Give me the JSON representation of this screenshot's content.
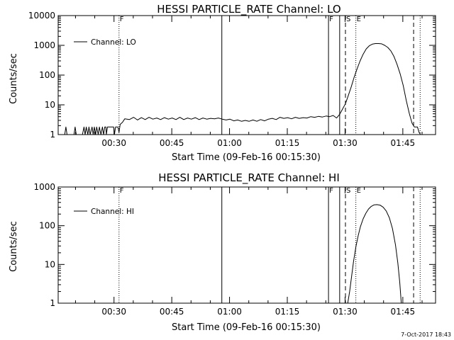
{
  "footer": {
    "timestamp": "7-Oct-2017 18:43"
  },
  "chart_data": [
    {
      "type": "line",
      "title": "HESSI PARTICLE_RATE Channel: LO",
      "xlabel": "Start Time (09-Feb-16 00:15:30)",
      "ylabel": "Counts/sec",
      "y_scale": "log",
      "xlim": [
        "00:15:30",
        "01:53:30"
      ],
      "ylim": [
        1,
        10000
      ],
      "x_ticks": [
        "00:30",
        "00:45",
        "01:00",
        "01:15",
        "01:30",
        "01:45"
      ],
      "y_ticks": [
        "1",
        "10",
        "100",
        "1000",
        "10000"
      ],
      "legend": {
        "placement": "top-left",
        "entries": [
          "Channel: LO"
        ]
      },
      "markers": [
        {
          "label": "F",
          "time": "00:31:18",
          "style": "dotted"
        },
        {
          "label": "",
          "time": "00:58:00",
          "style": "solid"
        },
        {
          "label": "F",
          "time": "01:25:42",
          "style": "solid"
        },
        {
          "label": "",
          "time": "01:28:36",
          "style": "solid"
        },
        {
          "label": "S",
          "time": "01:30:06",
          "style": "dashed"
        },
        {
          "label": "E",
          "time": "01:32:48",
          "style": "dotted"
        },
        {
          "label": "",
          "time": "01:47:48",
          "style": "dashed"
        },
        {
          "label": "",
          "time": "01:49:30",
          "style": "dotted"
        }
      ],
      "series": [
        {
          "name": "Channel: LO",
          "points": [
            [
              "00:17:12",
              1
            ],
            [
              "00:17:30",
              1.8
            ],
            [
              "00:17:48",
              1
            ],
            [
              "00:19:36",
              1
            ],
            [
              "00:19:54",
              1.8
            ],
            [
              "00:20:12",
              1
            ],
            [
              "00:21:48",
              1
            ],
            [
              "00:22:12",
              1.8
            ],
            [
              "00:22:30",
              1
            ],
            [
              "00:22:48",
              1.8
            ],
            [
              "00:23:12",
              1
            ],
            [
              "00:23:30",
              1.8
            ],
            [
              "00:23:48",
              1
            ],
            [
              "00:24:18",
              1.8
            ],
            [
              "00:24:36",
              1
            ],
            [
              "00:24:54",
              1.8
            ],
            [
              "00:25:12",
              1
            ],
            [
              "00:25:30",
              1.8
            ],
            [
              "00:25:54",
              1
            ],
            [
              "00:26:12",
              1.8
            ],
            [
              "00:26:36",
              1
            ],
            [
              "00:27:00",
              1.8
            ],
            [
              "00:27:18",
              1
            ],
            [
              "00:27:36",
              1.8
            ],
            [
              "00:27:54",
              1.8
            ],
            [
              "00:28:00",
              1
            ],
            [
              "00:28:18",
              1.8
            ],
            [
              "00:29:54",
              1.8
            ],
            [
              "00:30:06",
              1
            ],
            [
              "00:30:24",
              1.8
            ],
            [
              "00:31:00",
              1.8
            ],
            [
              "00:31:18",
              1.2
            ],
            [
              "00:31:36",
              2.2
            ],
            [
              "00:32:12",
              2.6
            ],
            [
              "00:32:48",
              3.4
            ],
            [
              "00:34:00",
              3.2
            ],
            [
              "00:35:06",
              3.8
            ],
            [
              "00:36:06",
              3.1
            ],
            [
              "00:37:06",
              3.7
            ],
            [
              "00:38:06",
              3.2
            ],
            [
              "00:39:06",
              3.8
            ],
            [
              "00:40:06",
              3.3
            ],
            [
              "00:41:06",
              3.6
            ],
            [
              "00:42:06",
              3.2
            ],
            [
              "00:43:06",
              3.7
            ],
            [
              "00:44:06",
              3.3
            ],
            [
              "00:45:06",
              3.6
            ],
            [
              "00:46:06",
              3.2
            ],
            [
              "00:47:06",
              3.8
            ],
            [
              "00:48:06",
              3.2
            ],
            [
              "00:49:06",
              3.6
            ],
            [
              "00:50:06",
              3.3
            ],
            [
              "00:51:06",
              3.7
            ],
            [
              "00:52:06",
              3.2
            ],
            [
              "00:53:06",
              3.6
            ],
            [
              "00:54:06",
              3.3
            ],
            [
              "00:55:06",
              3.5
            ],
            [
              "00:56:06",
              3.4
            ],
            [
              "00:57:06",
              3.6
            ],
            [
              "00:58:06",
              3.3
            ],
            [
              "00:59:06",
              3.1
            ],
            [
              "01:00:06",
              3.3
            ],
            [
              "01:01:06",
              2.9
            ],
            [
              "01:02:06",
              3.1
            ],
            [
              "01:03:06",
              2.8
            ],
            [
              "01:04:06",
              3.0
            ],
            [
              "01:05:06",
              2.8
            ],
            [
              "01:06:06",
              3.1
            ],
            [
              "01:07:06",
              2.8
            ],
            [
              "01:08:06",
              3.2
            ],
            [
              "01:09:06",
              2.9
            ],
            [
              "01:10:06",
              3.3
            ],
            [
              "01:11:06",
              3.5
            ],
            [
              "01:12:06",
              3.2
            ],
            [
              "01:13:06",
              3.8
            ],
            [
              "01:14:06",
              3.5
            ],
            [
              "01:15:06",
              3.7
            ],
            [
              "01:16:06",
              3.4
            ],
            [
              "01:17:06",
              3.8
            ],
            [
              "01:18:06",
              3.5
            ],
            [
              "01:19:06",
              3.7
            ],
            [
              "01:20:06",
              3.6
            ],
            [
              "01:21:06",
              4.0
            ],
            [
              "01:22:06",
              3.8
            ],
            [
              "01:23:06",
              4.1
            ],
            [
              "01:24:06",
              3.9
            ],
            [
              "01:25:06",
              4.2
            ],
            [
              "01:26:00",
              4.0
            ],
            [
              "01:26:54",
              4.4
            ],
            [
              "01:27:48",
              3.6
            ],
            [
              "01:28:36",
              4.8
            ],
            [
              "01:29:18",
              7
            ],
            [
              "01:30:06",
              11
            ],
            [
              "01:30:48",
              20
            ],
            [
              "01:31:36",
              40
            ],
            [
              "01:32:18",
              80
            ],
            [
              "01:33:06",
              160
            ],
            [
              "01:33:54",
              300
            ],
            [
              "01:34:42",
              500
            ],
            [
              "01:35:30",
              760
            ],
            [
              "01:36:18",
              970
            ],
            [
              "01:37:06",
              1100
            ],
            [
              "01:37:54",
              1150
            ],
            [
              "01:38:42",
              1150
            ],
            [
              "01:39:30",
              1120
            ],
            [
              "01:40:18",
              1000
            ],
            [
              "01:41:06",
              850
            ],
            [
              "01:41:54",
              650
            ],
            [
              "01:42:42",
              420
            ],
            [
              "01:43:30",
              230
            ],
            [
              "01:44:18",
              110
            ],
            [
              "01:45:06",
              45
            ],
            [
              "01:45:54",
              14
            ],
            [
              "01:46:42",
              5
            ],
            [
              "01:47:24",
              2.4
            ],
            [
              "01:48:00",
              1.8
            ],
            [
              "01:48:48",
              1.8
            ],
            [
              "01:49:12",
              1.2
            ],
            [
              "01:49:36",
              1
            ]
          ]
        }
      ]
    },
    {
      "type": "line",
      "title": "HESSI PARTICLE_RATE Channel: HI",
      "xlabel": "Start Time (09-Feb-16 00:15:30)",
      "ylabel": "Counts/sec",
      "y_scale": "log",
      "xlim": [
        "00:15:30",
        "01:53:30"
      ],
      "ylim": [
        1,
        1000
      ],
      "x_ticks": [
        "00:30",
        "00:45",
        "01:00",
        "01:15",
        "01:30",
        "01:45"
      ],
      "y_ticks": [
        "1",
        "10",
        "100",
        "1000"
      ],
      "legend": {
        "placement": "top-left",
        "entries": [
          "Channel: HI"
        ]
      },
      "markers": [
        {
          "label": "F",
          "time": "00:31:18",
          "style": "dotted"
        },
        {
          "label": "",
          "time": "00:58:00",
          "style": "solid"
        },
        {
          "label": "F",
          "time": "01:25:42",
          "style": "solid"
        },
        {
          "label": "",
          "time": "01:28:36",
          "style": "solid"
        },
        {
          "label": "S",
          "time": "01:30:06",
          "style": "dashed"
        },
        {
          "label": "E",
          "time": "01:32:48",
          "style": "dotted"
        },
        {
          "label": "",
          "time": "01:47:48",
          "style": "dashed"
        },
        {
          "label": "",
          "time": "01:49:30",
          "style": "dotted"
        }
      ],
      "series": [
        {
          "name": "Channel: HI",
          "points": [
            [
              "01:30:42",
              1
            ],
            [
              "01:31:12",
              2
            ],
            [
              "01:31:42",
              5
            ],
            [
              "01:32:12",
              12
            ],
            [
              "01:32:48",
              28
            ],
            [
              "01:33:24",
              55
            ],
            [
              "01:34:00",
              95
            ],
            [
              "01:34:42",
              150
            ],
            [
              "01:35:24",
              210
            ],
            [
              "01:36:06",
              270
            ],
            [
              "01:36:48",
              315
            ],
            [
              "01:37:30",
              345
            ],
            [
              "01:38:18",
              350
            ],
            [
              "01:39:06",
              340
            ],
            [
              "01:39:54",
              300
            ],
            [
              "01:40:42",
              240
            ],
            [
              "01:41:30",
              160
            ],
            [
              "01:42:18",
              85
            ],
            [
              "01:43:06",
              32
            ],
            [
              "01:43:42",
              11
            ],
            [
              "01:44:12",
              3.5
            ],
            [
              "01:44:36",
              1
            ]
          ]
        }
      ]
    }
  ]
}
